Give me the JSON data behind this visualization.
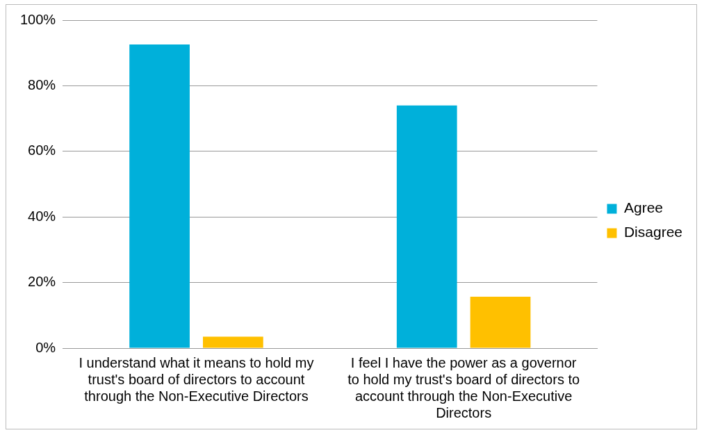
{
  "chart_data": {
    "type": "bar",
    "categories": [
      "I understand what it means to hold my trust's board of directors to account through the Non-Executive Directors",
      "I feel I have the power as a governor to hold my trust's board of directors to account through the Non-Executive Directors"
    ],
    "series": [
      {
        "name": "Agree",
        "color": "#00b0da",
        "values": [
          92.6,
          74.0
        ]
      },
      {
        "name": "Disagree",
        "color": "#ffc000",
        "values": [
          3.5,
          15.7
        ]
      }
    ],
    "ylim": [
      0,
      100
    ],
    "yticks": [
      {
        "value": 0,
        "label": "0%"
      },
      {
        "value": 20,
        "label": "20%"
      },
      {
        "value": 40,
        "label": "40%"
      },
      {
        "value": 60,
        "label": "60%"
      },
      {
        "value": 80,
        "label": "80%"
      },
      {
        "value": 100,
        "label": "100%"
      }
    ],
    "grid": "y",
    "legend": "right"
  }
}
